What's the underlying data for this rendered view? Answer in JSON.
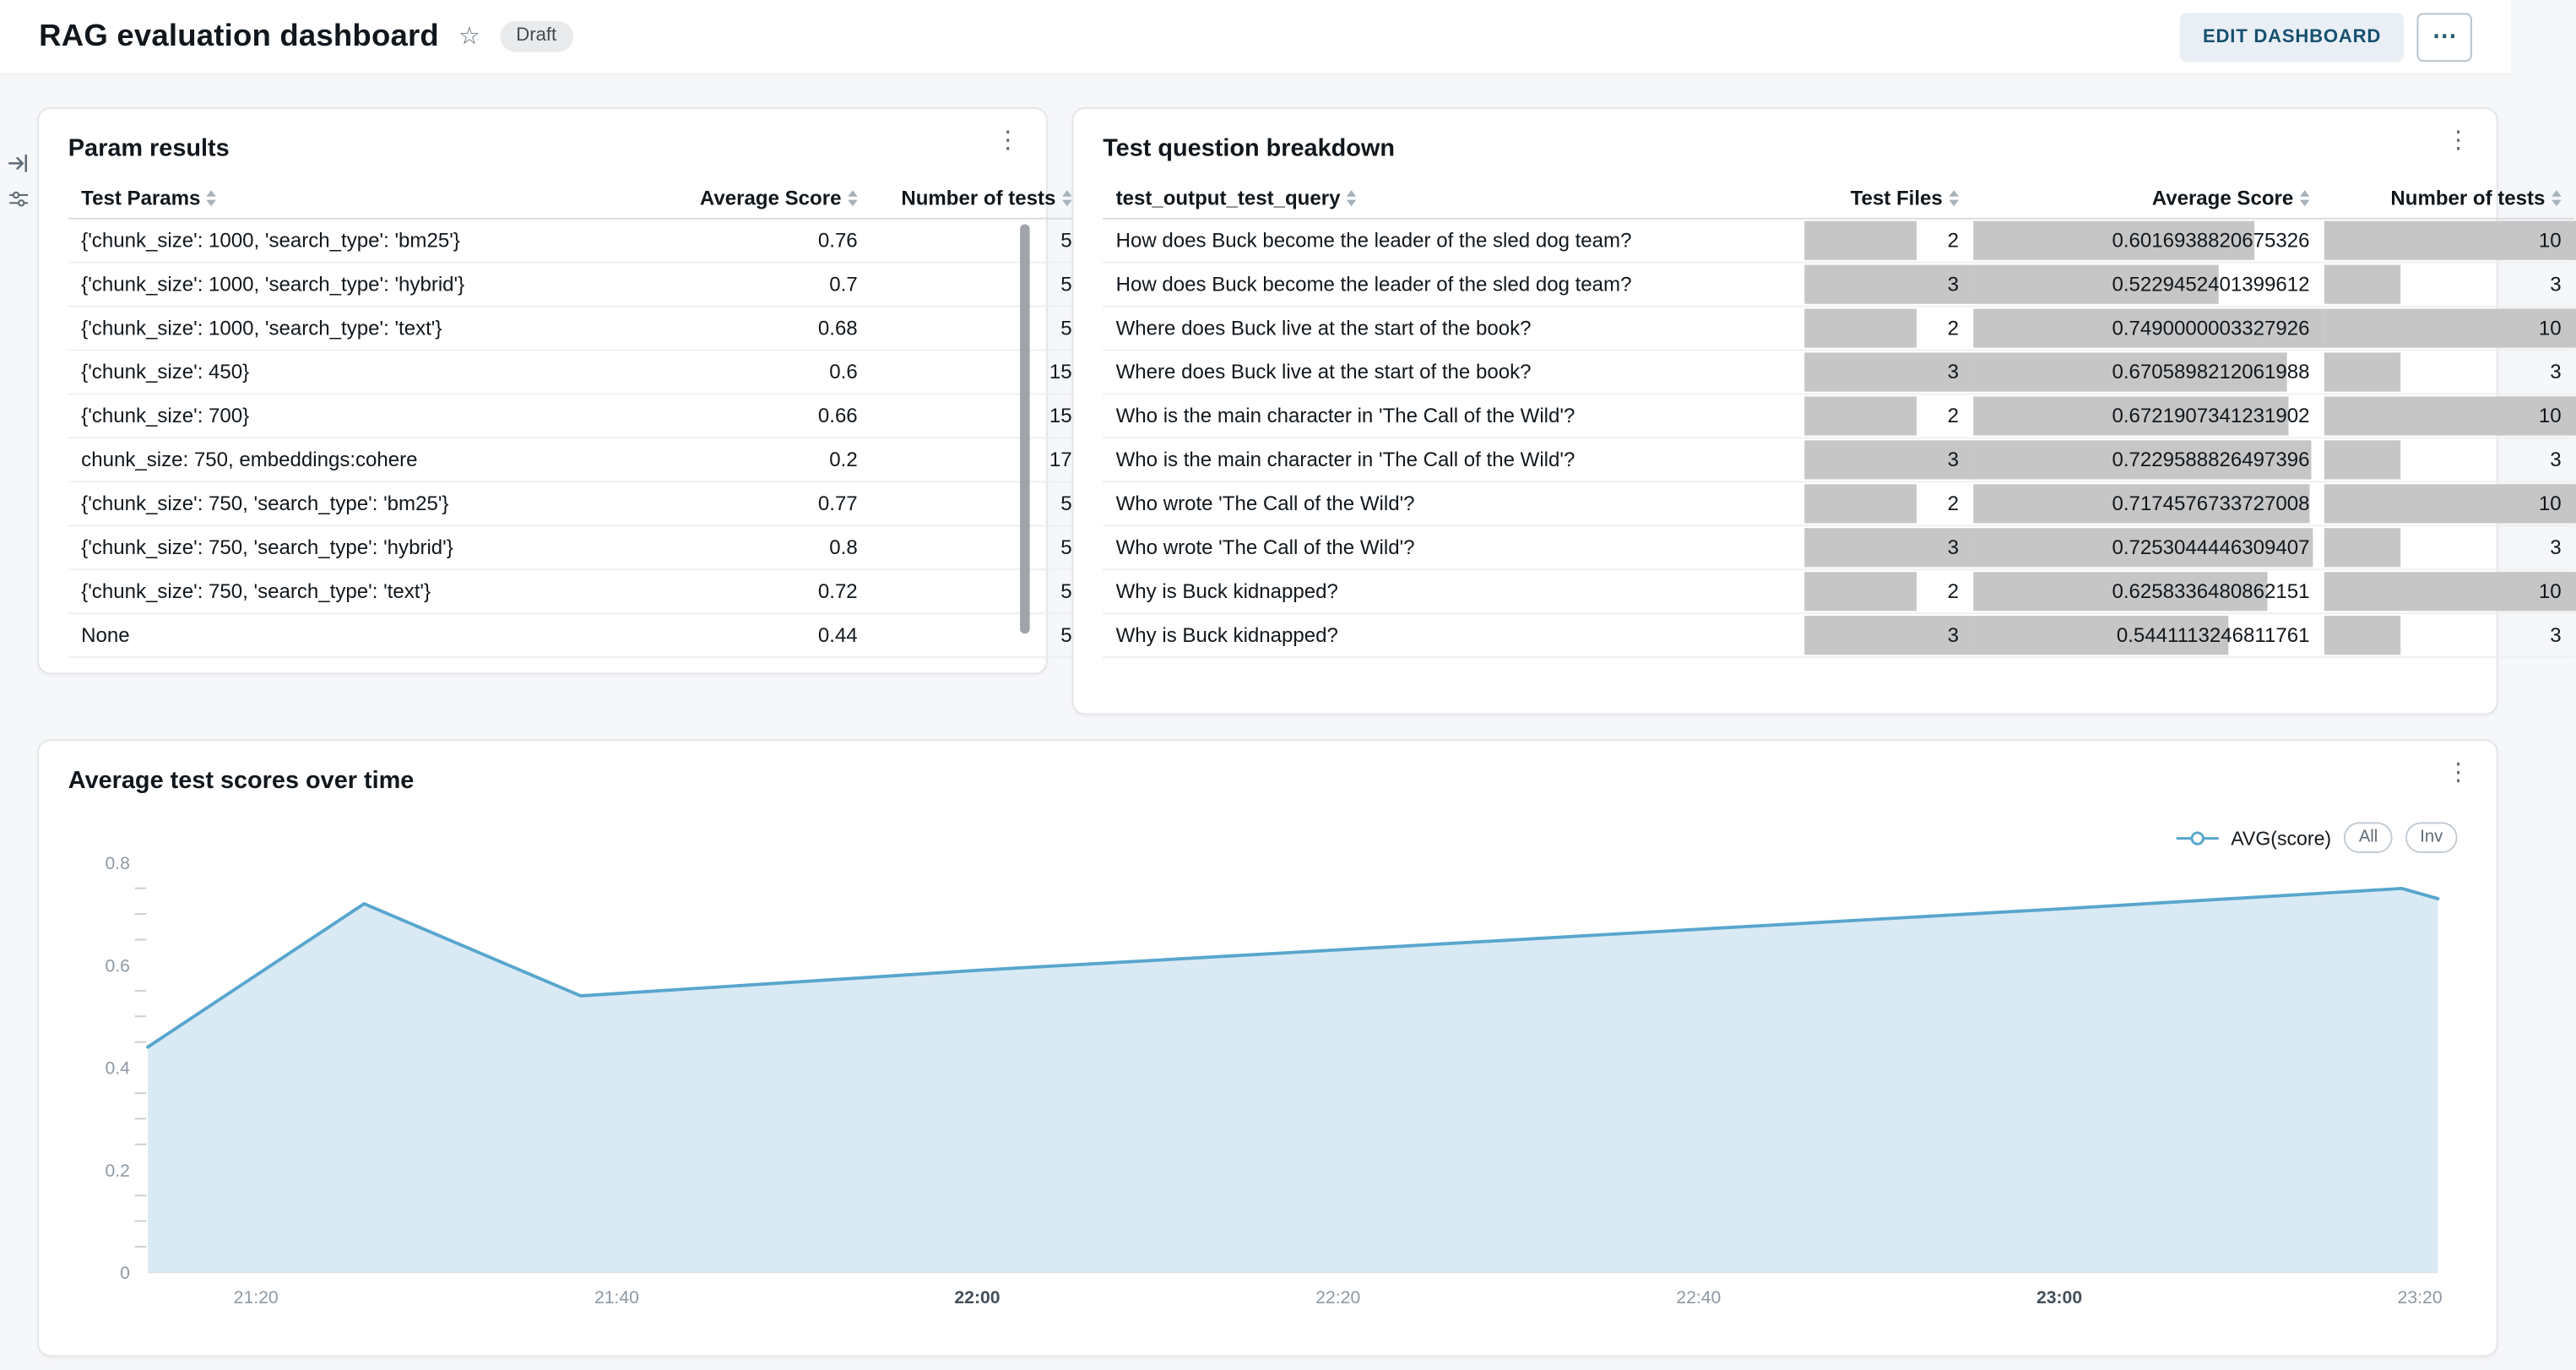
{
  "header": {
    "title": "RAG evaluation dashboard",
    "badge": "Draft",
    "edit_button": "EDIT DASHBOARD"
  },
  "icons": {
    "star": "☆",
    "kebab": "⋮",
    "more": "⋯"
  },
  "param_results": {
    "title": "Param results",
    "columns": [
      "Test Params",
      "Average Score",
      "Number of tests"
    ],
    "rows": [
      [
        "{'chunk_size': 1000, 'search_type': 'bm25'}",
        "0.76",
        "5"
      ],
      [
        "{'chunk_size': 1000, 'search_type': 'hybrid'}",
        "0.7",
        "5"
      ],
      [
        "{'chunk_size': 1000, 'search_type': 'text'}",
        "0.68",
        "5"
      ],
      [
        "{'chunk_size': 450}",
        "0.6",
        "15"
      ],
      [
        "{'chunk_size': 700}",
        "0.66",
        "15"
      ],
      [
        "chunk_size: 750, embeddings:cohere",
        "0.2",
        "17"
      ],
      [
        "{'chunk_size': 750, 'search_type': 'bm25'}",
        "0.77",
        "5"
      ],
      [
        "{'chunk_size': 750, 'search_type': 'hybrid'}",
        "0.8",
        "5"
      ],
      [
        "{'chunk_size': 750, 'search_type': 'text'}",
        "0.72",
        "5"
      ],
      [
        "None",
        "0.44",
        "5"
      ]
    ]
  },
  "breakdown": {
    "title": "Test question breakdown",
    "columns": [
      "test_output_test_query",
      "Test Files",
      "Average Score",
      "Number of tests"
    ],
    "rows": [
      {
        "query": "How does Buck become the leader of the sled dog team?",
        "files": 2,
        "score": "0.6016938820675326",
        "tests": 10
      },
      {
        "query": "How does Buck become the leader of the sled dog team?",
        "files": 3,
        "score": "0.5229452401399612",
        "tests": 3
      },
      {
        "query": "Where does Buck live at the start of the book?",
        "files": 2,
        "score": "0.7490000003327926",
        "tests": 10
      },
      {
        "query": "Where does Buck live at the start of the book?",
        "files": 3,
        "score": "0.6705898212061988",
        "tests": 3
      },
      {
        "query": "Who is the main character in 'The Call of the Wild'?",
        "files": 2,
        "score": "0.6721907341231902",
        "tests": 10
      },
      {
        "query": "Who is the main character in 'The Call of the Wild'?",
        "files": 3,
        "score": "0.7229588826497396",
        "tests": 3
      },
      {
        "query": "Who wrote 'The Call of the Wild'?",
        "files": 2,
        "score": "0.7174576733727008",
        "tests": 10
      },
      {
        "query": "Who wrote 'The Call of the Wild'?",
        "files": 3,
        "score": "0.7253044446309407",
        "tests": 3
      },
      {
        "query": "Why is Buck kidnapped?",
        "files": 2,
        "score": "0.6258336480862151",
        "tests": 10
      },
      {
        "query": "Why is Buck kidnapped?",
        "files": 3,
        "score": "0.5441113246811761",
        "tests": 3
      }
    ]
  },
  "chart_card": {
    "title": "Average test scores over time",
    "legend_label": "AVG(score)",
    "buttons": {
      "all": "All",
      "inv": "Inv"
    }
  },
  "chart_data": {
    "type": "area",
    "title": "Average test scores over time",
    "x_domain": [
      "21:14",
      "23:21"
    ],
    "x_ticks": [
      "21:20",
      "21:40",
      "22:00",
      "22:20",
      "22:40",
      "23:00",
      "23:20"
    ],
    "bold_x_ticks": [
      "22:00",
      "23:00"
    ],
    "y_ticks": [
      0,
      0.2,
      0.4,
      0.6,
      0.8
    ],
    "minor_y_step": 0.05,
    "ylim": [
      0,
      0.8
    ],
    "grid": false,
    "legend_position": "top-right",
    "series": [
      {
        "name": "AVG(score)",
        "color": "#58A6CE",
        "fill": "#D9EAF4",
        "points": [
          [
            "21:14",
            0.44
          ],
          [
            "21:26",
            0.72
          ],
          [
            "21:38",
            0.54
          ],
          [
            "22:00",
            0.59
          ],
          [
            "22:20",
            0.63
          ],
          [
            "22:40",
            0.67
          ],
          [
            "23:00",
            0.71
          ],
          [
            "23:19",
            0.75
          ],
          [
            "23:21",
            0.73
          ]
        ]
      }
    ]
  },
  "colors": {
    "line": "#58A6CE",
    "area_fill": "#D9EAF4",
    "cell_bar": "#C6C6C6",
    "accent_button_bg": "#E9EFF5",
    "accent_button_text": "#17506F",
    "page_bg": "#F6F7F9"
  }
}
